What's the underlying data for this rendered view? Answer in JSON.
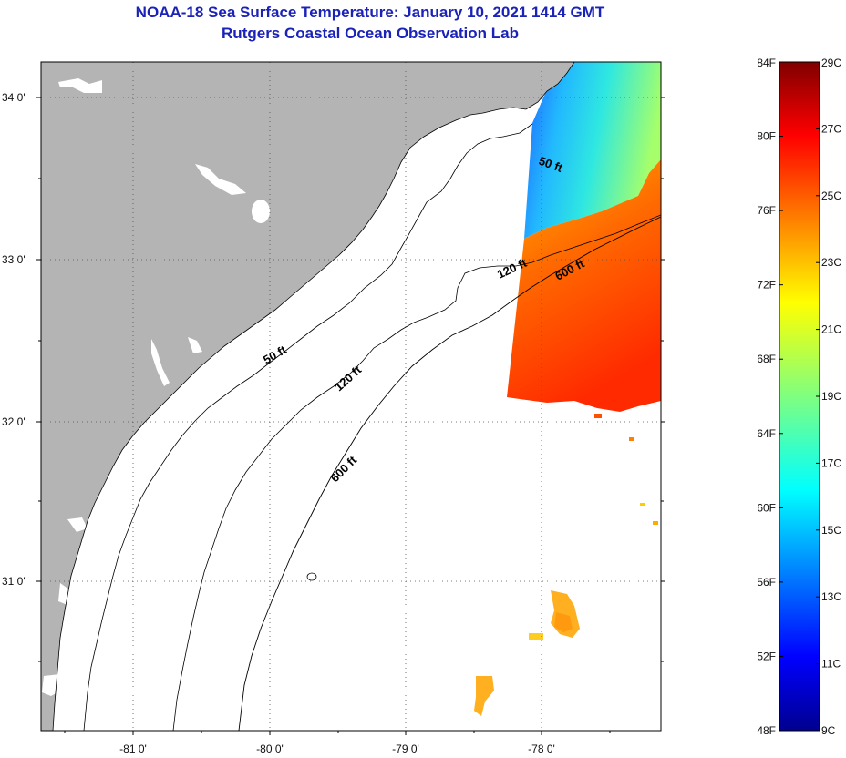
{
  "header": {
    "title": "NOAA-18 Sea Surface Temperature:  January 10, 2021 1414 GMT",
    "subtitle": "Rutgers Coastal Ocean Observation Lab"
  },
  "map": {
    "lon_ticks": [
      "-81 0'",
      "-80 0'",
      "-79 0'",
      "-78 0'"
    ],
    "lat_ticks": [
      "34 0'",
      "33 0'",
      "32 0'",
      "31 0'"
    ],
    "depth_contours": [
      "50 ft",
      "120 ft",
      "600 ft"
    ],
    "contour_labels": [
      {
        "text": "50 ft"
      },
      {
        "text": "120 ft"
      },
      {
        "text": "600 ft"
      },
      {
        "text": "50 ft"
      },
      {
        "text": "120 ft"
      },
      {
        "text": "600 ft"
      }
    ],
    "colors": {
      "land": "#b4b4b4",
      "ocean": "#ffffff",
      "grid": "#606060"
    }
  },
  "colorbar": {
    "fahrenheit": [
      "84F",
      "80F",
      "76F",
      "72F",
      "68F",
      "64F",
      "60F",
      "56F",
      "52F",
      "48F"
    ],
    "celsius": [
      "29C",
      "27C",
      "25C",
      "23C",
      "21C",
      "19C",
      "17C",
      "15C",
      "13C",
      "11C",
      "9C"
    ],
    "range_c": [
      9,
      29
    ],
    "range_f": [
      48,
      84
    ]
  }
}
